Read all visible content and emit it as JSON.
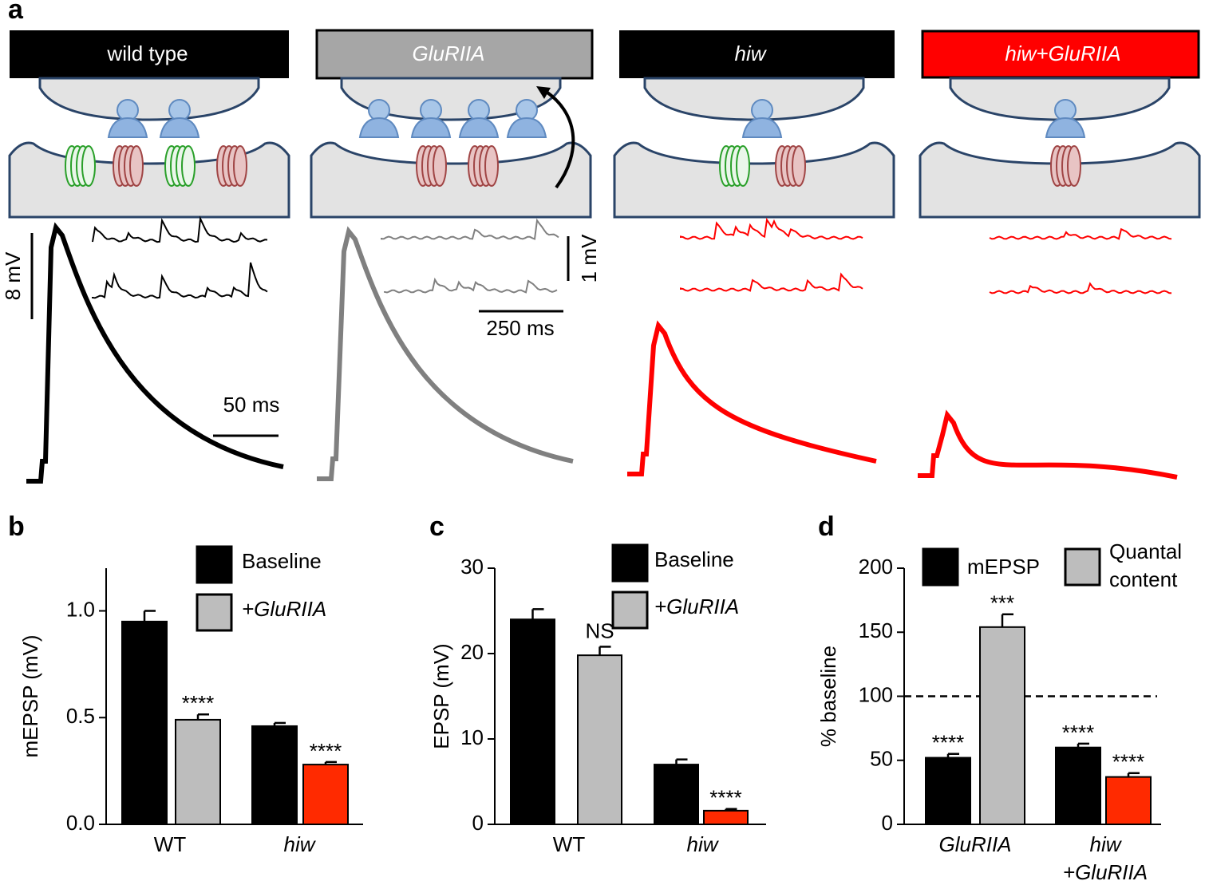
{
  "panel_a": {
    "letter": "a",
    "genotypes": [
      "wild type",
      "GluRIIA",
      "hiw",
      "hiw+GluRIIA"
    ],
    "scale_bars": {
      "wt_voltage": "8 mV",
      "wt_time": "50 ms",
      "mini_voltage": "1 mV",
      "mini_time": "250 ms"
    }
  },
  "chart_data": [
    {
      "type": "bar",
      "letter": "b",
      "ylabel": "mEPSP (mV)",
      "categories": [
        [
          "WT"
        ],
        [
          "hiw"
        ]
      ],
      "ylim": [
        0,
        1.2
      ],
      "yticks": [
        {
          "value": 0,
          "label": "0.0"
        },
        0.5,
        {
          "value": 1,
          "label": "1.0"
        }
      ],
      "series": [
        {
          "name": [
            "Baseline"
          ],
          "color": "#000000",
          "colors": [
            "#000000",
            "#000000"
          ],
          "values": [
            0.95,
            0.46
          ],
          "errors": [
            0.05,
            0.015
          ],
          "annotations": [
            null,
            null
          ]
        },
        {
          "name": [
            "+GluRIIA"
          ],
          "color": "#bdbdbd",
          "colors": [
            "#bdbdbd",
            "#ff2a00"
          ],
          "values": [
            0.49,
            0.28
          ],
          "errors": [
            0.025,
            0.012
          ],
          "annotations": [
            "****",
            "****"
          ]
        }
      ]
    },
    {
      "type": "bar",
      "letter": "c",
      "ylabel": "EPSP (mV)",
      "categories": [
        [
          "WT"
        ],
        [
          "hiw"
        ]
      ],
      "ylim": [
        0,
        30
      ],
      "yticks": [
        0,
        10,
        20,
        30
      ],
      "series": [
        {
          "name": [
            "Baseline"
          ],
          "color": "#000000",
          "colors": [
            "#000000",
            "#000000"
          ],
          "values": [
            24,
            7
          ],
          "errors": [
            1.2,
            0.6
          ],
          "annotations": [
            null,
            null
          ]
        },
        {
          "name": [
            "+GluRIIA"
          ],
          "color": "#bdbdbd",
          "colors": [
            "#bdbdbd",
            "#ff2a00"
          ],
          "values": [
            19.8,
            1.6
          ],
          "errors": [
            1,
            0.2
          ],
          "annotations": [
            "NS",
            "****"
          ]
        }
      ]
    },
    {
      "type": "bar",
      "letter": "d",
      "ylabel": "% baseline",
      "categories": [
        [
          "GluRIIA"
        ],
        [
          "hiw",
          "+GluRIIA"
        ]
      ],
      "ylim": [
        0,
        200
      ],
      "yticks": [
        0,
        50,
        100,
        150,
        200
      ],
      "ref_line": 100,
      "series": [
        {
          "name": [
            "mEPSP"
          ],
          "color": "#000000",
          "colors": [
            "#000000",
            "#000000"
          ],
          "values": [
            52,
            60
          ],
          "errors": [
            3,
            3
          ],
          "annotations": [
            "****",
            "****"
          ]
        },
        {
          "name": [
            "Quantal",
            "content"
          ],
          "color": "#bdbdbd",
          "colors": [
            "#bdbdbd",
            "#ff2a00"
          ],
          "values": [
            154,
            37
          ],
          "errors": [
            10,
            3
          ],
          "annotations": [
            "***",
            "****"
          ]
        }
      ]
    }
  ]
}
